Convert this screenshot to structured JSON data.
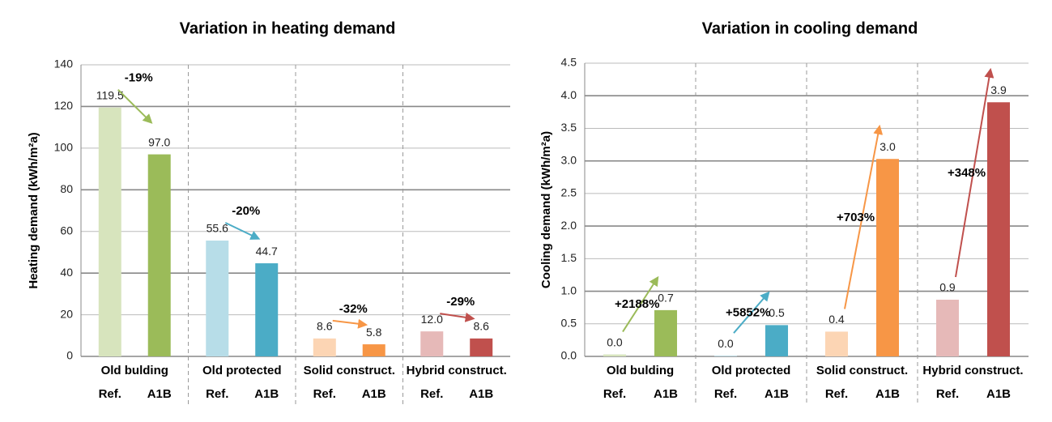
{
  "chart_data": [
    {
      "type": "bar",
      "title": "Variation in heating demand",
      "ylabel": "Heating demand  (kWh/m²a)",
      "groups": [
        "Old bulding",
        "Old protected",
        "Solid construct.",
        "Hybrid construct."
      ],
      "categories": [
        "Ref.",
        "A1B",
        "Ref.",
        "A1B",
        "Ref.",
        "A1B",
        "Ref.",
        "A1B"
      ],
      "values": [
        119.5,
        97.0,
        55.6,
        44.7,
        8.6,
        5.8,
        12.0,
        8.6
      ],
      "value_labels": [
        "119.5",
        "97.0",
        "55.6",
        "44.7",
        "8.6",
        "5.8",
        "12.0",
        "8.6"
      ],
      "colors": [
        "#d7e4bd",
        "#9bbb59",
        "#b7dde8",
        "#4bacc6",
        "#fcd5b4",
        "#f79646",
        "#e6b9b8",
        "#c0504d"
      ],
      "annotations": [
        "-19%",
        "-20%",
        "-32%",
        "-29%"
      ],
      "ylim": [
        0,
        140
      ],
      "yticks": [
        0,
        20,
        40,
        60,
        80,
        100,
        120,
        140
      ],
      "grid": true
    },
    {
      "type": "bar",
      "title": "Variation in cooling demand",
      "ylabel": "Cooling demand  (kWh/m²a)",
      "groups": [
        "Old bulding",
        "Old protected",
        "Solid construct.",
        "Hybrid construct."
      ],
      "categories": [
        "Ref.",
        "A1B",
        "Ref.",
        "A1B",
        "Ref.",
        "A1B",
        "Ref.",
        "A1B"
      ],
      "values": [
        0.03,
        0.71,
        0.01,
        0.48,
        0.38,
        3.03,
        0.87,
        3.9
      ],
      "value_labels": [
        "0.0",
        "0.7",
        "0.0",
        "0.5",
        "0.4",
        "3.0",
        "0.9",
        "3.9"
      ],
      "colors": [
        "#d7e4bd",
        "#9bbb59",
        "#b7dde8",
        "#4bacc6",
        "#fcd5b4",
        "#f79646",
        "#e6b9b8",
        "#c0504d"
      ],
      "annotations": [
        "+2188%",
        "+5852%",
        "+703%",
        "+348%"
      ],
      "ylim": [
        0,
        4.5
      ],
      "yticks": [
        {
          "value": 0,
          "label": "0.0"
        },
        0.5,
        {
          "value": 1,
          "label": "1.0"
        },
        1.5,
        {
          "value": 2,
          "label": "2.0"
        },
        2.5,
        {
          "value": 3,
          "label": "3.0"
        },
        3.5,
        {
          "value": 4,
          "label": "4.0"
        },
        4.5
      ],
      "grid": true
    }
  ]
}
